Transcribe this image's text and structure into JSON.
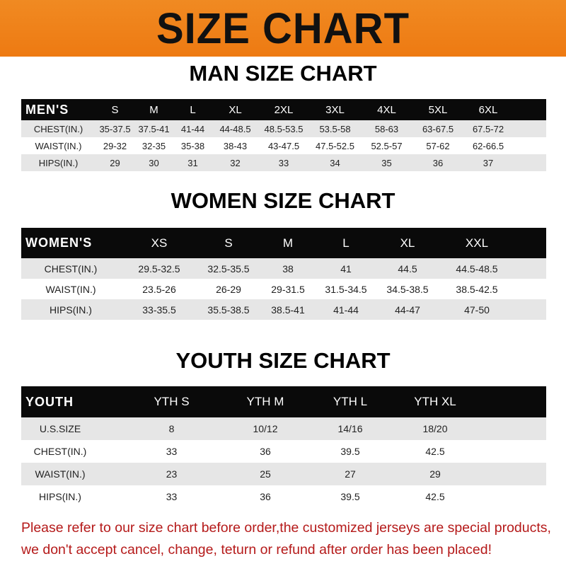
{
  "banner_title": "SIZE CHART",
  "men": {
    "title": "MAN SIZE CHART",
    "header": [
      "MEN'S",
      "S",
      "M",
      "L",
      "XL",
      "2XL",
      "3XL",
      "4XL",
      "5XL",
      "6XL"
    ],
    "rows": [
      [
        "CHEST(IN.)",
        "35-37.5",
        "37.5-41",
        "41-44",
        "44-48.5",
        "48.5-53.5",
        "53.5-58",
        "58-63",
        "63-67.5",
        "67.5-72"
      ],
      [
        "WAIST(IN.)",
        "29-32",
        "32-35",
        "35-38",
        "38-43",
        "43-47.5",
        "47.5-52.5",
        "52.5-57",
        "57-62",
        "62-66.5"
      ],
      [
        "HIPS(IN.)",
        "29",
        "30",
        "31",
        "32",
        "33",
        "34",
        "35",
        "36",
        "37"
      ]
    ]
  },
  "women": {
    "title": "WOMEN SIZE CHART",
    "header": [
      "WOMEN'S",
      "XS",
      "S",
      "M",
      "L",
      "XL",
      "XXL"
    ],
    "rows": [
      [
        "CHEST(IN.)",
        "29.5-32.5",
        "32.5-35.5",
        "38",
        "41",
        "44.5",
        "44.5-48.5"
      ],
      [
        "WAIST(IN.)",
        "23.5-26",
        "26-29",
        "29-31.5",
        "31.5-34.5",
        "34.5-38.5",
        "38.5-42.5"
      ],
      [
        "HIPS(IN.)",
        "33-35.5",
        "35.5-38.5",
        "38.5-41",
        "41-44",
        "44-47",
        "47-50"
      ]
    ]
  },
  "youth": {
    "title": "YOUTH SIZE CHART",
    "header": [
      "YOUTH",
      "YTH S",
      "YTH M",
      "YTH L",
      "YTH XL"
    ],
    "rows": [
      [
        "U.S.SIZE",
        "8",
        "10/12",
        "14/16",
        "18/20"
      ],
      [
        "CHEST(IN.)",
        "33",
        "36",
        "39.5",
        "42.5"
      ],
      [
        "WAIST(IN.)",
        "23",
        "25",
        "27",
        "29"
      ],
      [
        "HIPS(IN.)",
        "33",
        "36",
        "39.5",
        "42.5"
      ]
    ]
  },
  "note": [
    "Please refer to our size chart before order,the customized jerseys are special products,",
    "we don't accept cancel, change, teturn or refund after order has been placed!"
  ]
}
